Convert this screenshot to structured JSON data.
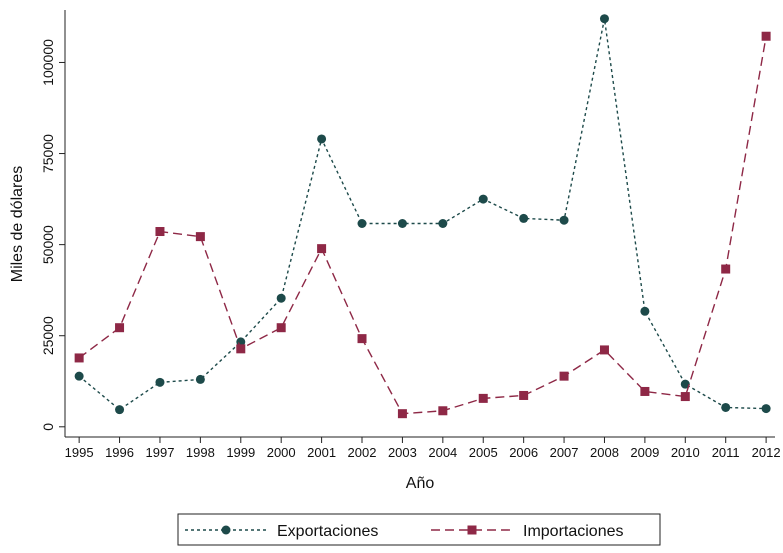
{
  "chart_data": {
    "type": "line",
    "x": [
      1995,
      1996,
      1997,
      1998,
      1999,
      2000,
      2001,
      2002,
      2003,
      2004,
      2005,
      2006,
      2007,
      2008,
      2009,
      2010,
      2011,
      2012
    ],
    "xlabel": "Año",
    "ylabel": "Miles de dólares",
    "xlim": [
      1994.65,
      2012.22
    ],
    "xticks": [
      1995,
      1996,
      1997,
      1998,
      1999,
      2000,
      2001,
      2002,
      2003,
      2004,
      2005,
      2006,
      2007,
      2008,
      2009,
      2010,
      2011,
      2012
    ],
    "ylim": [
      -2800,
      114400
    ],
    "yticks": [
      0,
      25000,
      50000,
      75000,
      100000
    ],
    "grid": false,
    "legend": "bottom",
    "series": [
      {
        "name": "Exportaciones",
        "color": "#1d4a4a",
        "marker": "circle",
        "dash": "short",
        "values": [
          13900,
          4700,
          12200,
          13000,
          23300,
          35300,
          79000,
          55800,
          55800,
          55800,
          62500,
          57200,
          56700,
          112000,
          31700,
          11700,
          5300,
          5000
        ]
      },
      {
        "name": "Importaciones",
        "color": "#8e2846",
        "marker": "square",
        "dash": "long",
        "values": [
          18900,
          27200,
          53600,
          52200,
          21400,
          27200,
          48900,
          24200,
          3600,
          4400,
          7800,
          8600,
          13900,
          21100,
          9700,
          8300,
          43300,
          107200
        ]
      }
    ]
  }
}
